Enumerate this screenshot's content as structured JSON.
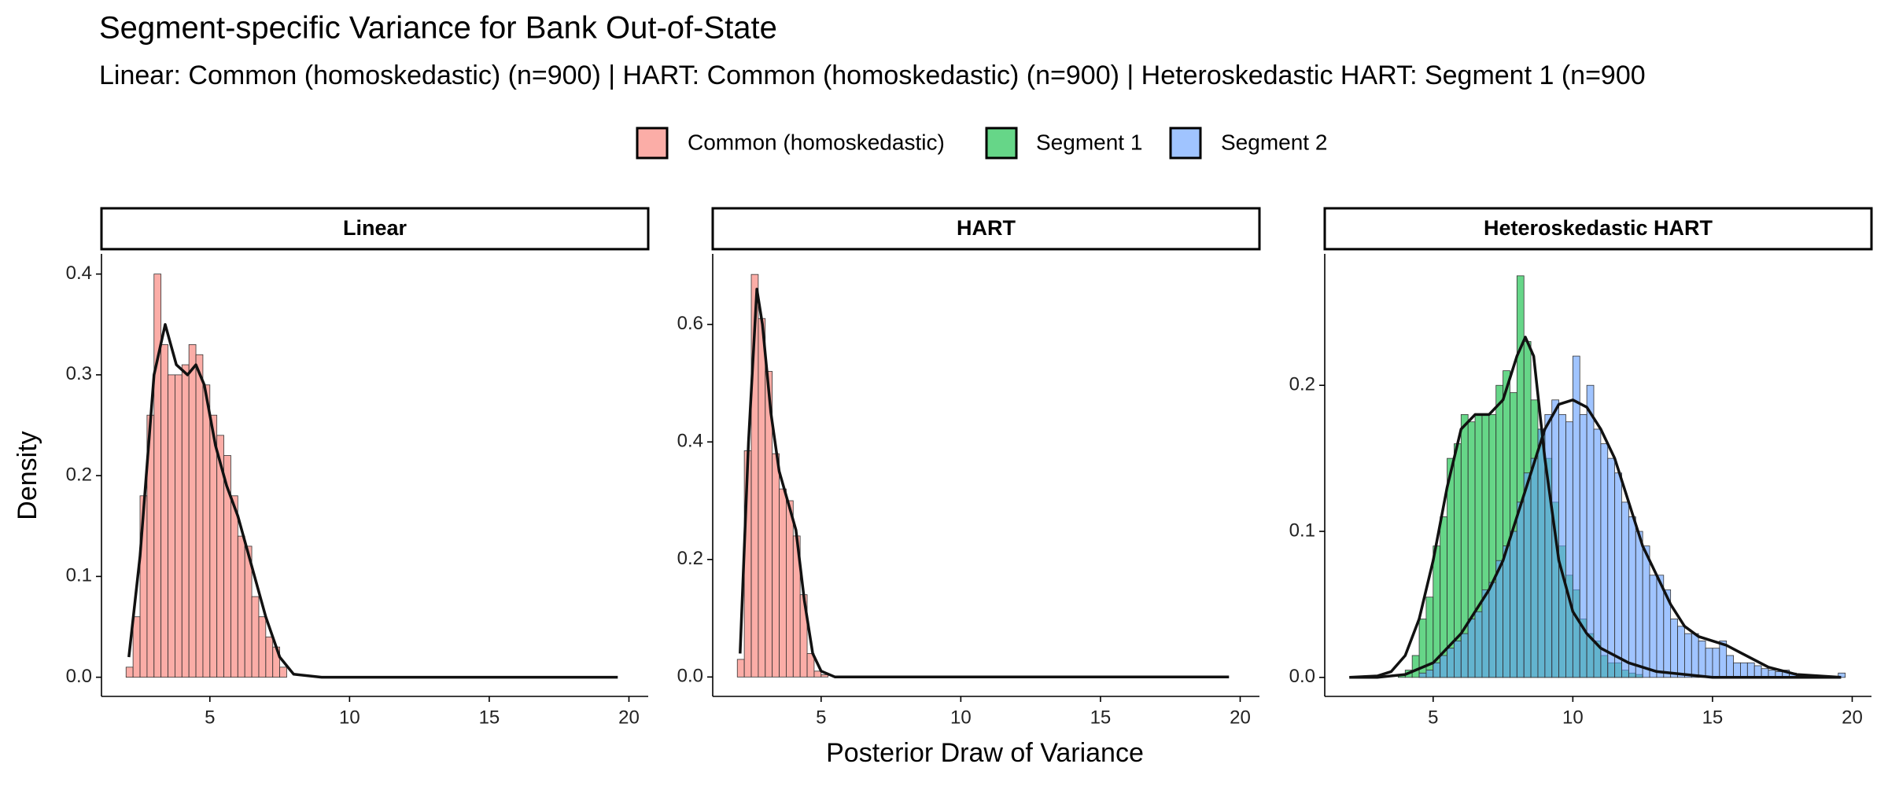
{
  "chart_data": {
    "type": "histogram",
    "title": "Segment-specific Variance for Bank Out-of-State",
    "subtitle": "Linear: Common (homoskedastic) (n=900) | HART: Common (homoskedastic) (n=900) | Heteroskedastic HART: Segment 1 (n=900",
    "x_label": "Posterior Draw of Variance",
    "y_label": "Density",
    "panels": [
      {
        "title": "Linear",
        "xlim": [
          1.12,
          20.69
        ],
        "ylim": [
          -0.019,
          0.42
        ],
        "xticks": [
          5,
          10,
          15,
          20
        ],
        "yticks": [
          {
            "value": 0,
            "label": "0.0"
          },
          0.1,
          0.2,
          0.3,
          0.4
        ],
        "series": [
          {
            "name": "Common (homoskedastic)",
            "color": "#F8766D",
            "bins": [
              2,
              2.25,
              2.5,
              2.75,
              3,
              3.25,
              3.5,
              3.75,
              4,
              4.25,
              4.5,
              4.75,
              5,
              5.25,
              5.5,
              5.75,
              6,
              6.25,
              6.5,
              6.75,
              7,
              7.25,
              7.5,
              7.75
            ],
            "values": [
              0.01,
              0.06,
              0.18,
              0.26,
              0.4,
              0.33,
              0.3,
              0.3,
              0.31,
              0.33,
              0.32,
              0.29,
              0.26,
              0.24,
              0.22,
              0.18,
              0.14,
              0.13,
              0.08,
              0.06,
              0.04,
              0.03,
              0.01
            ],
            "density": {
              "x": [
                2.1,
                2.5,
                3.0,
                3.4,
                3.8,
                4.2,
                4.5,
                4.8,
                5.2,
                5.6,
                6.0,
                6.5,
                7.0,
                7.5,
                8.0,
                9,
                19.6
              ],
              "y": [
                0.02,
                0.12,
                0.3,
                0.35,
                0.31,
                0.3,
                0.31,
                0.29,
                0.23,
                0.19,
                0.16,
                0.11,
                0.06,
                0.02,
                0.003,
                0,
                0
              ]
            }
          }
        ]
      },
      {
        "title": "HART",
        "xlim": [
          1.12,
          20.69
        ],
        "ylim": [
          -0.033,
          0.72
        ],
        "xticks": [
          5,
          10,
          15,
          20
        ],
        "yticks": [
          {
            "value": 0,
            "label": "0.0"
          },
          0.2,
          0.4,
          0.6
        ],
        "series": [
          {
            "name": "Common (homoskedastic)",
            "color": "#F8766D",
            "bins": [
              2,
              2.25,
              2.5,
              2.75,
              3,
              3.25,
              3.5,
              3.75,
              4,
              4.25,
              4.5,
              4.75,
              5,
              5.25
            ],
            "values": [
              0.03,
              0.385,
              0.685,
              0.61,
              0.52,
              0.38,
              0.32,
              0.3,
              0.24,
              0.14,
              0.04,
              0.01,
              0.004
            ],
            "density": {
              "x": [
                2.1,
                2.4,
                2.7,
                2.9,
                3.2,
                3.5,
                3.8,
                4.1,
                4.4,
                4.7,
                5.0,
                5.5,
                19.6
              ],
              "y": [
                0.04,
                0.4,
                0.66,
                0.6,
                0.45,
                0.35,
                0.3,
                0.25,
                0.13,
                0.04,
                0.01,
                0,
                0
              ]
            }
          }
        ]
      },
      {
        "title": "Heteroskedastic HART",
        "xlim": [
          1.12,
          20.69
        ],
        "ylim": [
          -0.013,
          0.29
        ],
        "xticks": [
          5,
          10,
          15,
          20
        ],
        "yticks": [
          {
            "value": 0,
            "label": "0.0"
          },
          0.1,
          0.2
        ],
        "series": [
          {
            "name": "Segment 1",
            "color": "#00BA38",
            "bins": [
              3.75,
              4,
              4.25,
              4.5,
              4.75,
              5,
              5.25,
              5.5,
              5.75,
              6,
              6.25,
              6.5,
              6.75,
              7,
              7.25,
              7.5,
              7.75,
              8,
              8.25,
              8.5,
              8.75,
              9,
              9.25,
              9.5,
              9.75,
              10,
              10.25,
              10.5,
              10.75,
              11,
              11.25,
              11.5,
              11.75,
              12,
              12.25,
              12.5
            ],
            "values": [
              0.002,
              0.005,
              0.015,
              0.04,
              0.055,
              0.09,
              0.11,
              0.15,
              0.16,
              0.18,
              0.175,
              0.18,
              0.18,
              0.18,
              0.2,
              0.21,
              0.195,
              0.275,
              0.23,
              0.19,
              0.17,
              0.15,
              0.12,
              0.09,
              0.07,
              0.06,
              0.04,
              0.03,
              0.025,
              0.015,
              0.01,
              0.01,
              0.005,
              0.003,
              0.002
            ],
            "density": {
              "x": [
                2.0,
                3.0,
                3.5,
                4.0,
                4.5,
                5.0,
                5.5,
                6.0,
                6.5,
                7.0,
                7.5,
                8.0,
                8.3,
                8.6,
                9.0,
                9.5,
                10,
                10.5,
                11,
                12,
                13,
                15,
                19.6
              ],
              "y": [
                0,
                0.001,
                0.004,
                0.015,
                0.04,
                0.08,
                0.13,
                0.17,
                0.18,
                0.18,
                0.19,
                0.22,
                0.233,
                0.22,
                0.15,
                0.08,
                0.045,
                0.03,
                0.02,
                0.01,
                0.004,
                0,
                0
              ]
            }
          },
          {
            "name": "Segment 2",
            "color": "#619CFF",
            "bins": [
              4.5,
              4.75,
              5,
              5.25,
              5.5,
              5.75,
              6,
              6.25,
              6.5,
              6.75,
              7,
              7.25,
              7.5,
              7.75,
              8,
              8.25,
              8.5,
              8.75,
              9,
              9.25,
              9.5,
              9.75,
              10,
              10.25,
              10.5,
              10.75,
              11,
              11.25,
              11.5,
              11.75,
              12,
              12.25,
              12.5,
              12.75,
              13,
              13.25,
              13.5,
              13.75,
              14,
              14.25,
              14.5,
              14.75,
              15,
              15.25,
              15.5,
              15.75,
              16,
              16.25,
              16.5,
              16.75,
              17,
              17.25,
              17.5,
              17.75,
              18,
              18.25,
              18.5,
              18.75,
              19,
              19.25,
              19.5,
              19.75
            ],
            "values": [
              0.003,
              0.005,
              0.01,
              0.015,
              0.02,
              0.025,
              0.03,
              0.04,
              0.045,
              0.06,
              0.065,
              0.08,
              0.09,
              0.1,
              0.12,
              0.14,
              0.15,
              0.17,
              0.18,
              0.19,
              0.18,
              0.175,
              0.22,
              0.18,
              0.2,
              0.17,
              0.16,
              0.15,
              0.14,
              0.12,
              0.11,
              0.1,
              0.09,
              0.07,
              0.07,
              0.06,
              0.04,
              0.035,
              0.03,
              0.03,
              0.025,
              0.02,
              0.02,
              0.025,
              0.015,
              0.01,
              0.01,
              0.01,
              0.008,
              0.006,
              0.005,
              0.004,
              0.005,
              0.003,
              0.002,
              0.001,
              0.001,
              0,
              0,
              0,
              0.003
            ],
            "density": {
              "x": [
                2,
                3,
                4,
                5,
                6,
                7,
                7.5,
                8,
                8.5,
                9,
                9.5,
                10,
                10.5,
                11,
                11.5,
                12,
                12.5,
                13,
                13.5,
                14,
                14.5,
                15,
                15.5,
                16,
                17,
                18,
                19.6
              ],
              "y": [
                0,
                0,
                0.002,
                0.01,
                0.03,
                0.06,
                0.08,
                0.11,
                0.14,
                0.17,
                0.187,
                0.19,
                0.185,
                0.17,
                0.15,
                0.12,
                0.09,
                0.07,
                0.05,
                0.035,
                0.028,
                0.025,
                0.022,
                0.017,
                0.007,
                0.002,
                0
              ]
            }
          }
        ]
      }
    ]
  }
}
